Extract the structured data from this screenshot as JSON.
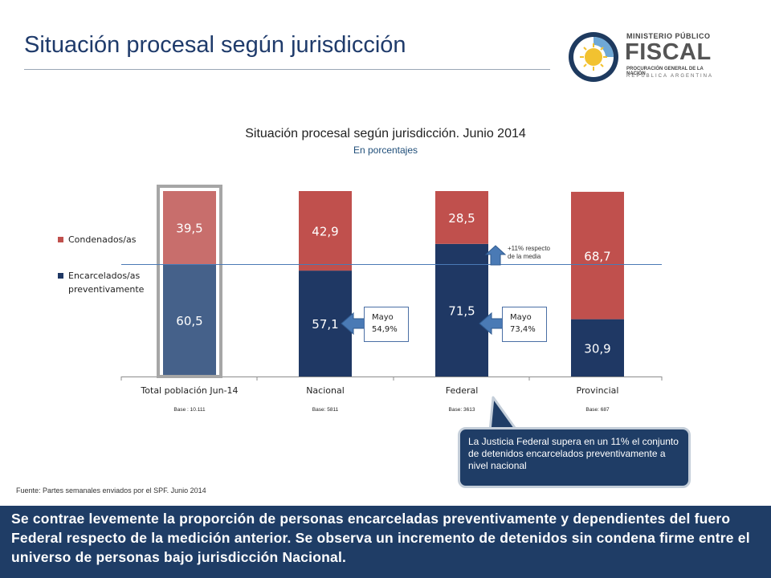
{
  "header": {
    "title": "Situación procesal según jurisdicción",
    "logo": {
      "line1": "MINISTERIO PÚBLICO",
      "line2": "FISCAL",
      "line3": "PROCURACIÓN GENERAL DE LA NACIÓN",
      "line4": "REPÚBLICA ARGENTINA"
    }
  },
  "chart_data": {
    "type": "bar",
    "stacked": true,
    "title": "Situación procesal según jurisdicción. Junio 2014",
    "subtitle": "En porcentajes",
    "categories": [
      "Total población Jun-14",
      "Nacional",
      "Federal",
      "Provincial"
    ],
    "bases": [
      "Base : 10.111",
      "Base: 5811",
      "Base: 3613",
      "Base: 687"
    ],
    "series": [
      {
        "name": "Encarcelados/as preventivamente",
        "values": [
          60.5,
          57.1,
          71.5,
          30.9
        ],
        "labels": [
          "60,5",
          "57,1",
          "71,5",
          "30,9"
        ]
      },
      {
        "name": "Condenados/as",
        "values": [
          39.5,
          42.9,
          28.5,
          68.7
        ],
        "labels": [
          "39,5",
          "42,9",
          "28,5",
          "68,7"
        ]
      }
    ],
    "ylim": [
      0,
      100
    ],
    "reference_line": 60.5,
    "legend_position": "left",
    "grid": false,
    "colors": {
      "Encarcelados/as preventivamente": "#1f3864",
      "Condenados/as": "#c0504d",
      "total_prev": "#45618a",
      "total_cond": "#c86e6c",
      "highlight_border": "#a6a6a6",
      "reference_line": "#4a7ab5"
    }
  },
  "annotations": {
    "mayo_nacional": {
      "line1": "Mayo",
      "line2": "54,9%"
    },
    "mayo_federal": {
      "line1": "Mayo",
      "line2": "73,4%"
    },
    "federal_note": {
      "line1": "+11% respecto",
      "line2": "de la media"
    }
  },
  "source": "Fuente: Partes semanales enviados por el SPF. Junio 2014",
  "callout": "La Justicia Federal supera en un 11% el conjunto de detenidos encarcelados preventivamente a nivel nacional",
  "bottom_text": "Se contrae levemente la proporción de personas encarceladas preventivamente y dependientes del fuero Federal respecto de la medición anterior. Se observa un incremento de detenidos sin condena firme entre el universo de personas bajo jurisdicción Nacional."
}
